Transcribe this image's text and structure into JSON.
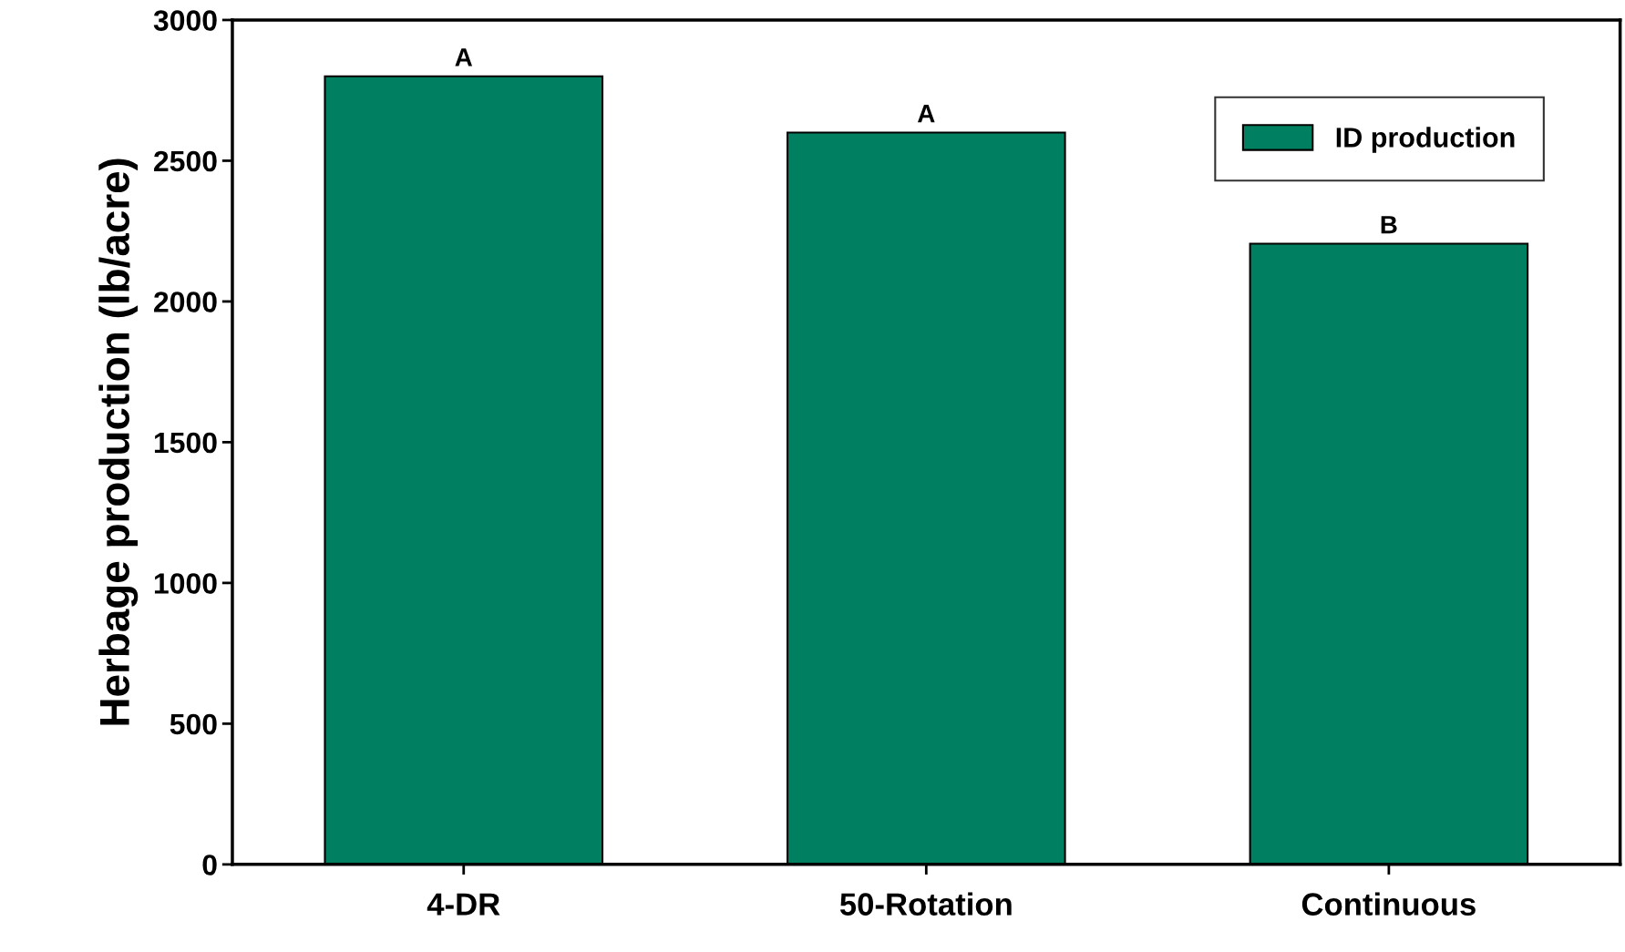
{
  "chart_data": {
    "type": "bar",
    "ylabel": "Herbage production (lb/acre)",
    "categories": [
      "4-DR",
      "50-Rotation",
      "Continuous"
    ],
    "series": [
      {
        "name": "ID production",
        "color": "#008060",
        "values": [
          2800,
          2600,
          2205
        ]
      }
    ],
    "ylim": [
      0,
      3000
    ],
    "yticks": [
      0,
      500,
      1000,
      1500,
      2000,
      2500,
      3000
    ],
    "grid": false,
    "legend": "top right",
    "annotations": [
      {
        "text": "A",
        "x": "4-DR",
        "y": 2800
      },
      {
        "text": "A",
        "x": "50-Rotation",
        "y": 2600
      },
      {
        "text": "B",
        "x": "Continuous",
        "y": 2205
      }
    ]
  }
}
